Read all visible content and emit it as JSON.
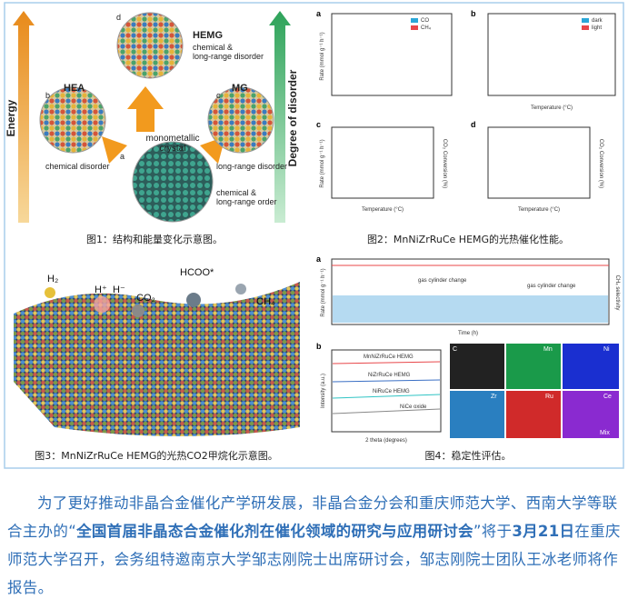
{
  "figures": [
    {
      "caption": "图1：结构和能量变化示意图。",
      "labels": [
        "Energy",
        "Degree of disorder",
        "HEMG",
        "chemical &",
        "long-range disorder",
        "HEA",
        "chemical disorder",
        "MG",
        "long-range disorder",
        "monometallic",
        "crystal",
        "chemical &",
        "long-range order",
        "a",
        "b",
        "c",
        "d"
      ]
    },
    {
      "caption": "图2：MnNiZrRuCe HEMG的光热催化性能。",
      "labels": [
        "a",
        "b",
        "c",
        "d",
        "Rate (mmol g⁻¹ h⁻¹)",
        "Temperature (°C)",
        "CO",
        "CH₄",
        "dark",
        "light",
        "CO₂ Conversion (%)"
      ]
    },
    {
      "caption": "图3：MnNiZrRuCe HEMG的光热CO2甲烷化示意图。",
      "labels": [
        "H₂",
        "H⁺",
        "H⁻",
        "CO₂",
        "HCOO*",
        "CH₄"
      ]
    },
    {
      "caption": "图4：稳定性评估。",
      "labels": [
        "a",
        "b",
        "Rate (mmol g⁻¹ h⁻¹)",
        "Time (h)",
        "CH₄ selectivity",
        "gas cylinder change",
        "gas cylinder change",
        "2 theta (degrees)",
        "Intensity (a.u.)",
        "MnNiZrRuCe HEMG",
        "NiZrRuCe HEMG",
        "NiRuCe HEMG",
        "NiCe oxide",
        "C",
        "Mn",
        "Ni",
        "Zr",
        "Ru",
        "Ce",
        "Mix"
      ]
    }
  ],
  "paragraph": {
    "parts": [
      "为了更好推动非晶合金催化产学研发展，非晶合金分会和重庆师范大学、西南大学等联合主办的“",
      "全国首届非晶态合金催化剂在催化领域的研究与应用研讨会",
      "”将于",
      "3月21日",
      "在重庆师范大学召开，会务组特邀南京大学邹志刚院士出席研讨会，邹志刚院士团队王冰老师将作报告。"
    ]
  }
}
